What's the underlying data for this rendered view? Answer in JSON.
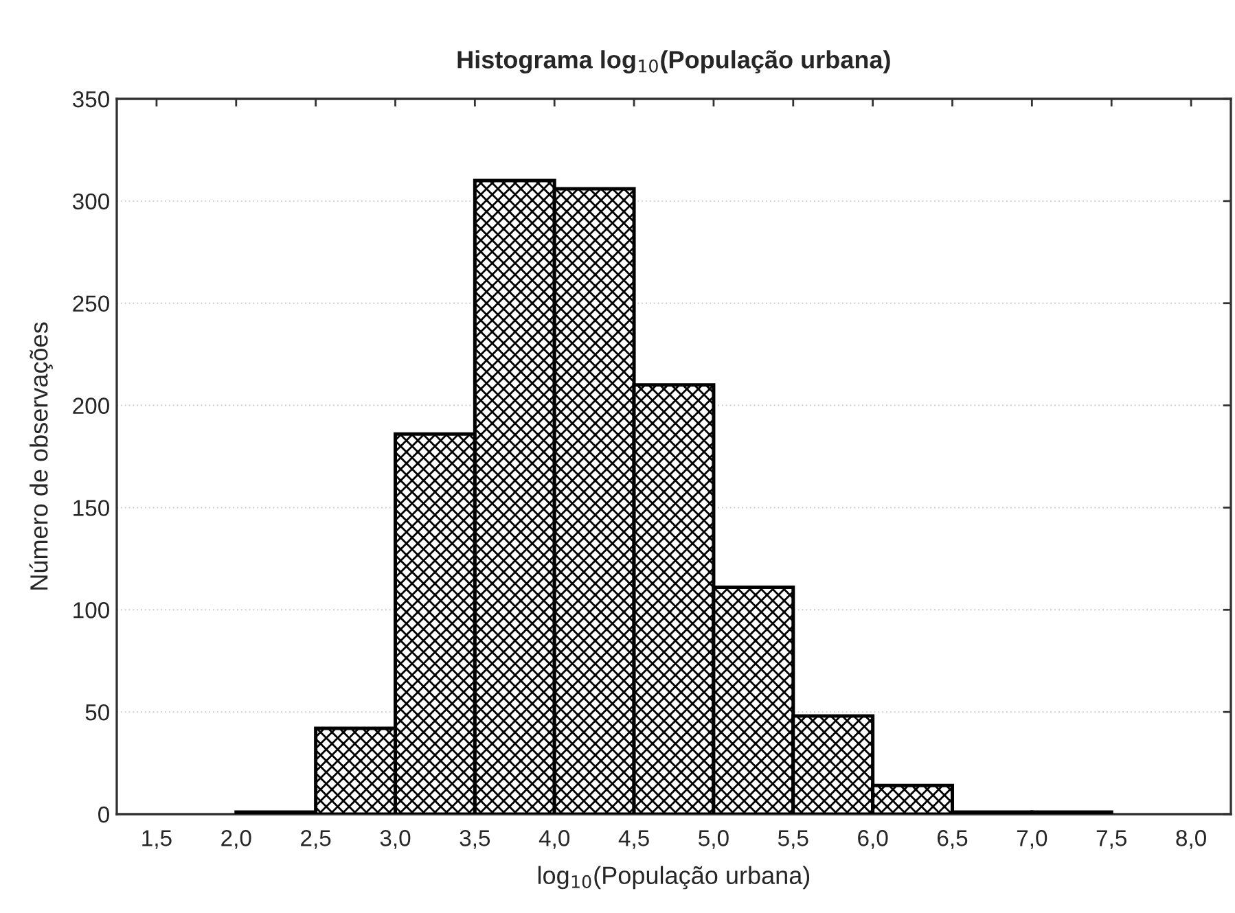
{
  "chart_data": {
    "type": "histogram",
    "title": "Histograma log$_{10}$(População urbana)",
    "xlabel": "log$_{10}$(População urbana)",
    "ylabel": "Número de observações",
    "bins": [
      2.0,
      2.5,
      3.0,
      3.5,
      4.0,
      4.5,
      5.0,
      5.5,
      6.0,
      6.5,
      7.0,
      7.5
    ],
    "values": [
      1,
      42,
      186,
      310,
      306,
      210,
      111,
      48,
      14,
      1,
      1
    ],
    "xlim": [
      1.25,
      8.25
    ],
    "xticks": [
      {
        "value": 1.5,
        "label": "1,5"
      },
      {
        "value": 2.0,
        "label": "2,0"
      },
      {
        "value": 2.5,
        "label": "2,5"
      },
      {
        "value": 3.0,
        "label": "3,0"
      },
      {
        "value": 3.5,
        "label": "3,5"
      },
      {
        "value": 4.0,
        "label": "4,0"
      },
      {
        "value": 4.5,
        "label": "4,5"
      },
      {
        "value": 5.0,
        "label": "5,0"
      },
      {
        "value": 5.5,
        "label": "5,5"
      },
      {
        "value": 6.0,
        "label": "6,0"
      },
      {
        "value": 6.5,
        "label": "6,5"
      },
      {
        "value": 7.0,
        "label": "7,0"
      },
      {
        "value": 7.5,
        "label": "7,5"
      },
      {
        "value": 8.0,
        "label": "8,0"
      }
    ],
    "ylim": [
      0,
      350
    ],
    "yticks": [
      0,
      50,
      100,
      150,
      200,
      250,
      300,
      350
    ],
    "grid": "y"
  }
}
